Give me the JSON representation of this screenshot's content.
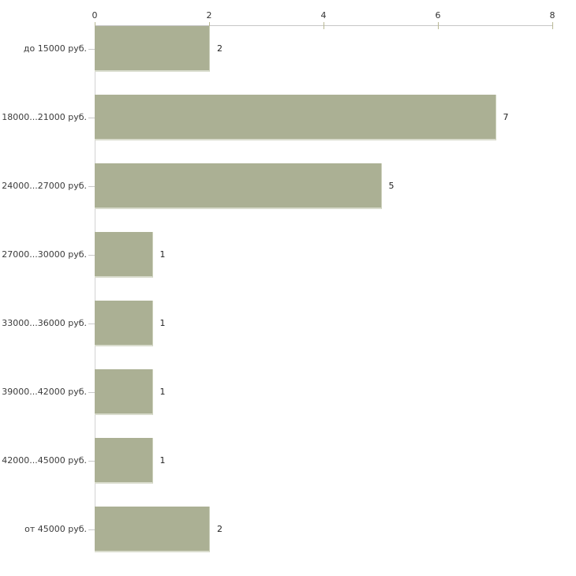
{
  "chart_data": {
    "type": "bar",
    "orientation": "horizontal",
    "title": "",
    "xlabel": "",
    "ylabel": "",
    "categories": [
      "до 15000 руб.",
      "18000...21000 руб.",
      "24000...27000 руб.",
      "27000...30000 руб.",
      "33000...36000 руб.",
      "39000...42000 руб.",
      "42000...45000 руб.",
      "от 45000 руб."
    ],
    "values": [
      2,
      7,
      5,
      1,
      1,
      1,
      1,
      2
    ],
    "x_ticks": [
      0,
      2,
      4,
      6,
      8
    ],
    "xlim": [
      0,
      8
    ],
    "grid": false,
    "legend": false,
    "data_labels": true,
    "colors": {
      "bar_fill": "#abb094",
      "bar_edge_bottom": "#d9dccd",
      "bar_edge_right": "#cdd1bc",
      "x_axis_line": "#c6c6c6",
      "y_axis_line": "#d2d2d2",
      "tick_mark": "#b9b894",
      "text": "#3b3b3b",
      "background": "#ffffff"
    }
  }
}
